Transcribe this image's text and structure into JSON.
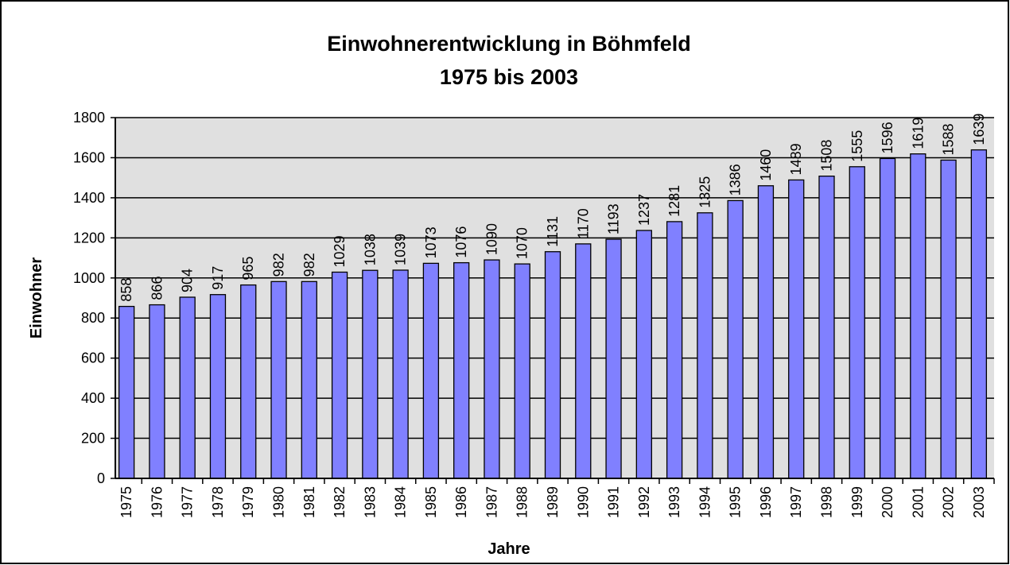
{
  "chart_data": {
    "type": "bar",
    "title": "Einwohnerentwicklung in Böhmfeld",
    "subtitle": "1975 bis 2003",
    "x_label": "Jahre",
    "y_label": "Einwohner",
    "categories": [
      "1975",
      "1976",
      "1977",
      "1978",
      "1979",
      "1980",
      "1981",
      "1982",
      "1983",
      "1984",
      "1985",
      "1986",
      "1987",
      "1988",
      "1989",
      "1990",
      "1991",
      "1992",
      "1993",
      "1994",
      "1995",
      "1996",
      "1997",
      "1998",
      "1999",
      "2000",
      "2001",
      "2002",
      "2003"
    ],
    "values": [
      858,
      866,
      904,
      917,
      965,
      982,
      982,
      1029,
      1038,
      1039,
      1073,
      1076,
      1090,
      1070,
      1131,
      1170,
      1193,
      1237,
      1281,
      1325,
      1386,
      1460,
      1489,
      1508,
      1555,
      1596,
      1619,
      1588,
      1639
    ],
    "color": "#8080ff",
    "ylim": [
      0,
      1800
    ],
    "yticks": [
      0,
      200,
      400,
      600,
      800,
      1000,
      1200,
      1400,
      1600,
      1800
    ],
    "grid": true
  }
}
